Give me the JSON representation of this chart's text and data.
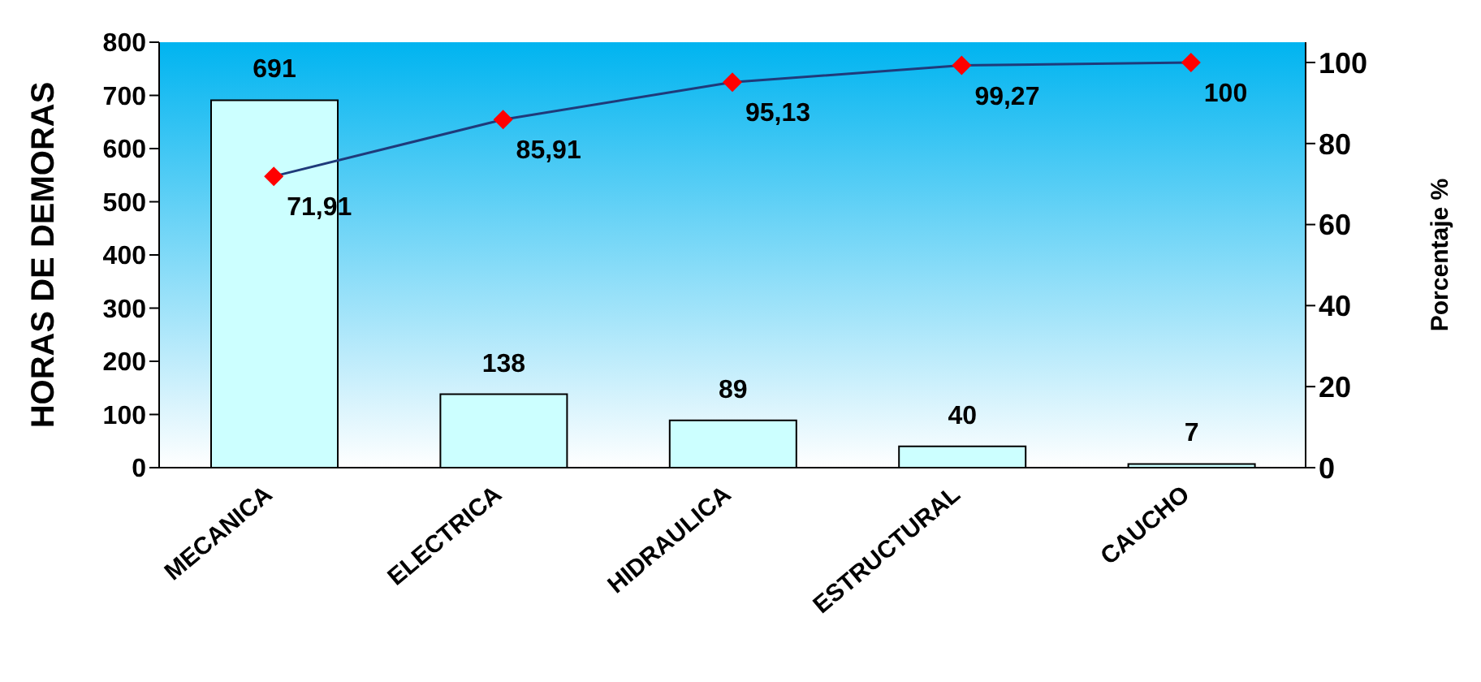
{
  "chart_data": {
    "type": "bar",
    "ylabel": "HORAS DE DEMORAS",
    "y2label": "Porcentaje %",
    "categories": [
      "MECANICA",
      "ELECTRICA",
      "HIDRAULICA",
      "ESTRUCTURAL",
      "CAUCHO"
    ],
    "series": [
      {
        "color": "#ccffff",
        "values": [
          691,
          138,
          89,
          40,
          7
        ],
        "value_labels": [
          "691",
          "138",
          "89",
          "40",
          "7"
        ]
      },
      {
        "type": "line",
        "axis": "y2",
        "color": "#1f3a7a",
        "colors": [
          "#ff0000",
          "#ff0000",
          "#ff0000",
          "#ff0000",
          "#ff0000"
        ],
        "values": [
          71.91,
          85.91,
          95.13,
          99.27,
          100
        ],
        "value_labels": [
          "71,91",
          "85,91",
          "95,13",
          "99,27",
          "100"
        ]
      }
    ],
    "ylim": [
      0,
      800
    ],
    "yticks": [
      0,
      100,
      200,
      300,
      400,
      500,
      600,
      700,
      800
    ],
    "y2lim": [
      0,
      105
    ],
    "y2ticks": [
      0,
      20,
      40,
      60,
      80,
      100
    ],
    "marker": "diamond",
    "line_style": "solid",
    "grid": false,
    "legend": false
  }
}
